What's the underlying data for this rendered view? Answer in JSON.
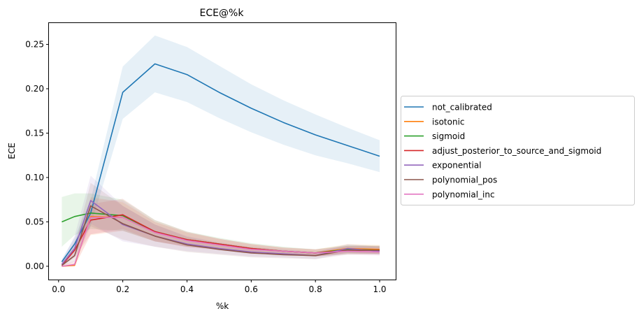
{
  "chart_data": {
    "type": "line",
    "title": "ECE@%k",
    "xlabel": "%k",
    "ylabel": "ECE",
    "xlim": [
      -0.03,
      1.05
    ],
    "ylim": [
      -0.015,
      0.274
    ],
    "xticks": [
      0.0,
      0.2,
      0.4,
      0.6,
      0.8,
      1.0
    ],
    "xtick_labels": [
      "0.0",
      "0.2",
      "0.4",
      "0.6",
      "0.8",
      "1.0"
    ],
    "yticks": [
      0.0,
      0.05,
      0.1,
      0.15,
      0.2,
      0.25
    ],
    "ytick_labels": [
      "0.00",
      "0.05",
      "0.10",
      "0.15",
      "0.20",
      "0.25"
    ],
    "grid": false,
    "legend_position": "right-outside",
    "x": [
      0.01,
      0.05,
      0.1,
      0.2,
      0.3,
      0.4,
      0.5,
      0.6,
      0.7,
      0.8,
      0.9,
      1.0
    ],
    "series": [
      {
        "name": "not_calibrated",
        "color": "#1f77b4",
        "values": [
          0.005,
          0.025,
          0.06,
          0.196,
          0.228,
          0.216,
          0.196,
          0.178,
          0.162,
          0.148,
          0.136,
          0.124
        ],
        "lower": [
          0.002,
          0.018,
          0.045,
          0.166,
          0.196,
          0.185,
          0.167,
          0.151,
          0.137,
          0.125,
          0.116,
          0.106
        ],
        "upper": [
          0.008,
          0.032,
          0.075,
          0.225,
          0.26,
          0.247,
          0.226,
          0.205,
          0.187,
          0.171,
          0.156,
          0.142
        ]
      },
      {
        "name": "isotonic",
        "color": "#ff7f0e",
        "values": [
          0.0,
          0.001,
          0.056,
          0.055,
          0.038,
          0.03,
          0.025,
          0.02,
          0.017,
          0.015,
          0.02,
          0.019
        ],
        "lower": [
          0.0,
          0.0,
          0.035,
          0.04,
          0.028,
          0.022,
          0.019,
          0.015,
          0.013,
          0.011,
          0.015,
          0.014
        ],
        "upper": [
          0.002,
          0.004,
          0.078,
          0.072,
          0.05,
          0.038,
          0.031,
          0.025,
          0.021,
          0.019,
          0.025,
          0.024
        ]
      },
      {
        "name": "sigmoid",
        "color": "#2ca02c",
        "values": [
          0.05,
          0.056,
          0.06,
          0.057,
          0.039,
          0.03,
          0.025,
          0.02,
          0.017,
          0.015,
          0.019,
          0.018
        ],
        "lower": [
          0.022,
          0.035,
          0.042,
          0.04,
          0.028,
          0.022,
          0.019,
          0.015,
          0.013,
          0.011,
          0.014,
          0.014
        ],
        "upper": [
          0.078,
          0.082,
          0.082,
          0.075,
          0.052,
          0.039,
          0.032,
          0.026,
          0.022,
          0.019,
          0.024,
          0.023
        ]
      },
      {
        "name": "adjust_posterior_to_source_and_sigmoid",
        "color": "#d62728",
        "values": [
          0.001,
          0.018,
          0.052,
          0.058,
          0.039,
          0.03,
          0.025,
          0.02,
          0.017,
          0.015,
          0.018,
          0.018
        ],
        "lower": [
          0.0,
          0.01,
          0.036,
          0.042,
          0.028,
          0.022,
          0.019,
          0.015,
          0.013,
          0.011,
          0.014,
          0.014
        ],
        "upper": [
          0.004,
          0.028,
          0.07,
          0.076,
          0.052,
          0.039,
          0.031,
          0.025,
          0.021,
          0.019,
          0.023,
          0.023
        ]
      },
      {
        "name": "exponential",
        "color": "#9467bd",
        "values": [
          0.002,
          0.02,
          0.074,
          0.047,
          0.034,
          0.025,
          0.02,
          0.016,
          0.014,
          0.012,
          0.02,
          0.017
        ],
        "lower": [
          0.0,
          0.01,
          0.048,
          0.028,
          0.022,
          0.017,
          0.014,
          0.011,
          0.01,
          0.008,
          0.015,
          0.013
        ],
        "upper": [
          0.006,
          0.034,
          0.102,
          0.068,
          0.047,
          0.034,
          0.027,
          0.022,
          0.019,
          0.016,
          0.025,
          0.022
        ]
      },
      {
        "name": "polynomial_pos",
        "color": "#8c564b",
        "values": [
          0.001,
          0.012,
          0.068,
          0.048,
          0.034,
          0.024,
          0.019,
          0.015,
          0.013,
          0.012,
          0.018,
          0.018
        ],
        "lower": [
          0.0,
          0.005,
          0.045,
          0.03,
          0.022,
          0.016,
          0.013,
          0.01,
          0.009,
          0.008,
          0.013,
          0.013
        ],
        "upper": [
          0.004,
          0.022,
          0.094,
          0.068,
          0.047,
          0.033,
          0.026,
          0.021,
          0.018,
          0.016,
          0.023,
          0.023
        ]
      },
      {
        "name": "polynomial_inc",
        "color": "#e377c2",
        "values": [
          0.0,
          0.002,
          0.055,
          0.055,
          0.038,
          0.029,
          0.024,
          0.019,
          0.017,
          0.015,
          0.017,
          0.016
        ],
        "lower": [
          0.0,
          0.0,
          0.036,
          0.04,
          0.028,
          0.021,
          0.018,
          0.014,
          0.013,
          0.011,
          0.013,
          0.012
        ],
        "upper": [
          0.002,
          0.006,
          0.076,
          0.074,
          0.05,
          0.038,
          0.031,
          0.025,
          0.021,
          0.019,
          0.022,
          0.021
        ]
      }
    ]
  }
}
